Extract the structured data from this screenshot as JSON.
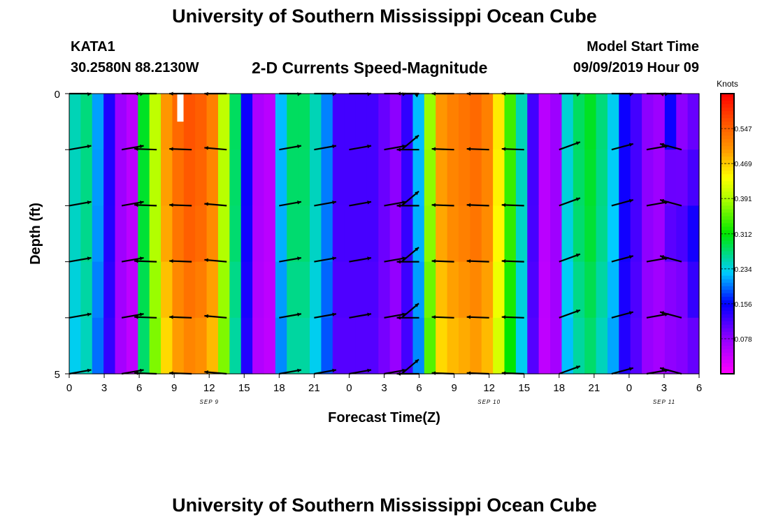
{
  "header": {
    "title": "University of Southern Mississippi Ocean Cube",
    "station": "KATA1",
    "coordinates": "30.2580N 88.2130W",
    "subtitle": "2-D Currents Speed-Magnitude",
    "model_start_label": "Model Start Time",
    "model_start_value": "09/09/2019 Hour 09"
  },
  "footer": {
    "title": "University of Southern Mississippi Ocean Cube"
  },
  "chart_data": {
    "type": "heatmap",
    "title": "2-D Currents Speed-Magnitude",
    "xlabel": "Forecast Time(Z)",
    "ylabel": "Depth (ft)",
    "x_range_hours": [
      0,
      54
    ],
    "y_range": [
      0,
      5
    ],
    "y_ticks": [
      "0",
      "5"
    ],
    "x_tick_labels": [
      "0",
      "3",
      "6",
      "9",
      "12",
      "15",
      "18",
      "21",
      "0",
      "3",
      "6",
      "9",
      "12",
      "15",
      "18",
      "21",
      "0",
      "3",
      "6"
    ],
    "date_labels": [
      {
        "text": "SEP 9",
        "hour": 12
      },
      {
        "text": "SEP 10",
        "hour": 36
      },
      {
        "text": "SEP 11",
        "hour": 51
      }
    ],
    "colorbar": {
      "label": "Knots",
      "ticks": [
        "0.547",
        "0.469",
        "0.391",
        "0.312",
        "0.234",
        "0.156",
        "0.078"
      ],
      "range": [
        0,
        0.625
      ]
    },
    "speed_by_hour": [
      0.25,
      0.27,
      0.21,
      0.14,
      0.07,
      0.05,
      0.3,
      0.4,
      0.5,
      0.54,
      0.56,
      0.55,
      0.52,
      0.4,
      0.28,
      0.15,
      0.06,
      0.05,
      0.22,
      0.28,
      0.28,
      0.25,
      0.2,
      0.12,
      0.12,
      0.12,
      0.12,
      0.1,
      0.08,
      0.13,
      0.22,
      0.38,
      0.5,
      0.52,
      0.53,
      0.54,
      0.52,
      0.45,
      0.34,
      0.25,
      0.12,
      0.05,
      0.07,
      0.24,
      0.28,
      0.3,
      0.27,
      0.23,
      0.15,
      0.12,
      0.08,
      0.07,
      0.15,
      0.2,
      0.24
    ],
    "depth_factor": [
      1.0,
      0.99,
      0.98,
      0.95,
      0.92
    ],
    "depth_offsets_late": [
      [
        0.0,
        -0.05,
        -0.04,
        -0.06,
        -0.06
      ],
      [
        -0.12,
        -0.1,
        -0.08,
        -0.1,
        -0.1
      ],
      [
        -0.14,
        -0.12,
        -0.09,
        -0.1,
        -0.12
      ]
    ],
    "arrow_depths": [
      0,
      1,
      2,
      3,
      4,
      5
    ],
    "arrow_hours": [
      0,
      4.5,
      7.5,
      10.5,
      13.5,
      18,
      21,
      24,
      27,
      28.5,
      30,
      33,
      36,
      39,
      42,
      46.5,
      49.5,
      52.5
    ],
    "arrow_angles_deg": [
      10,
      10,
      178,
      178,
      175,
      10,
      10,
      10,
      10,
      40,
      180,
      178,
      178,
      178,
      20,
      15,
      10,
      165
    ],
    "missing_cell": {
      "hour": 9.5,
      "depth_top": 0,
      "depth_bottom": 0.5
    }
  }
}
